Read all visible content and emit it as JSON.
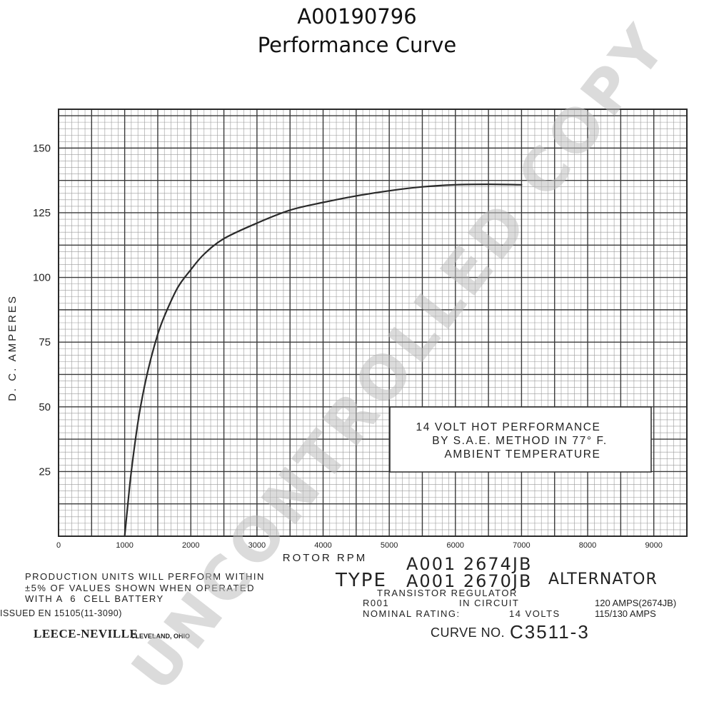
{
  "header": {
    "part_number": "A00190796",
    "subtitle": "Performance Curve"
  },
  "chart_data": {
    "type": "line",
    "title": "",
    "xlabel": "ROTOR RPM",
    "ylabel": "D. C. AMPERES",
    "xlim": [
      0,
      9500
    ],
    "ylim": [
      0,
      165
    ],
    "x_ticks": [
      "0",
      "1000",
      "2000",
      "3000",
      "4000",
      "5000",
      "6000",
      "7000",
      "8000",
      "9000"
    ],
    "y_ticks": [
      "25",
      "50",
      "75",
      "100",
      "125",
      "150"
    ],
    "grid": true,
    "series": [
      {
        "x": [
          1000,
          1050,
          1100,
          1200,
          1300,
          1400,
          1500,
          1600,
          1800,
          2000,
          2200,
          2500,
          3000,
          3500,
          4000,
          4500,
          5000,
          5500,
          6000,
          6500,
          7000
        ],
        "y": [
          0,
          13,
          25,
          44,
          58,
          69,
          78,
          85,
          96,
          103,
          109,
          115,
          121,
          126,
          129,
          131.5,
          133.5,
          135,
          135.8,
          136,
          135.8
        ],
        "color": "#2a2a2a"
      }
    ],
    "annotation": {
      "lines": [
        "14 VOLT HOT PERFORMANCE",
        "BY S.A.E. METHOD IN 77° F.",
        "AMBIENT TEMPERATURE"
      ]
    }
  },
  "footer": {
    "production_note": [
      "PRODUCTION UNITS WILL PERFORM WITHIN",
      "±5% OF VALUES SHOWN WHEN OPERATED",
      "WITH A  6  CELL BATTERY"
    ],
    "issued": "ISSUED EN 15105(11-3090)",
    "maker": "LEECE-NEVILLE",
    "city": "CLEVELAND, OHIO",
    "model_line_1": "A001 2674JB",
    "type_label": "TYPE",
    "model_line_2": "A001 2670JB",
    "alternator_label": "ALTERNATOR",
    "regulator": "TRANSISTOR REGULATOR",
    "circuit_code": "R001",
    "circuit_label": "IN CIRCUIT",
    "nominal_label": "NOMINAL RATING:",
    "nominal_volts": "14 VOLTS",
    "amps_1": "120 AMPS(2674JB)",
    "amps_2": "115/130 AMPS",
    "curve_label": "CURVE NO.",
    "curve_number": "C3511-3"
  },
  "watermark": "UNCONTROLLED COPY"
}
